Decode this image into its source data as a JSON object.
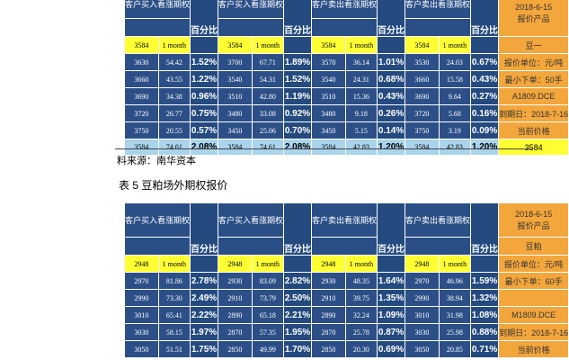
{
  "headers": {
    "buy_call": "客户买入看涨期权",
    "sell_call": "客户卖出看涨期权",
    "pct": "百分比",
    "month": "1 month"
  },
  "table1": {
    "side_header": [
      "2018-6-15",
      "报价产品"
    ],
    "side_product": "豆一",
    "side_unit": "报价单位：元/吨",
    "side_min": "最小下单：50手",
    "side_code": "A1809.DCE",
    "side_expiry": "到期日：2018-7-16",
    "side_current": "当前价格",
    "side_price": "3584",
    "rows": [
      {
        "k1": "3584",
        "k2": "3584",
        "k3": "3584",
        "k4": "3584"
      },
      {
        "k1": "3630",
        "v1": "54.42",
        "p1": "1.52%",
        "k2": "3700",
        "v2": "67.71",
        "p2": "1.89%",
        "k3": "3570",
        "v3": "36.14",
        "p3": "1.01%",
        "k4": "3530",
        "v4": "24.03",
        "p4": "0.67%"
      },
      {
        "k1": "3660",
        "v1": "43.55",
        "p1": "1.22%",
        "k2": "3540",
        "v2": "54.31",
        "p2": "1.52%",
        "k3": "3540",
        "v3": "24.31",
        "p3": "0.68%",
        "k4": "3660",
        "v4": "15.58",
        "p4": "0.43%"
      },
      {
        "k1": "3690",
        "v1": "34.38",
        "p1": "0.96%",
        "k2": "3510",
        "v2": "42.80",
        "p2": "1.19%",
        "k3": "3510",
        "v3": "15.36",
        "p3": "0.43%",
        "k4": "3690",
        "v4": "9.64",
        "p4": "0.27%"
      },
      {
        "k1": "3720",
        "v1": "26.77",
        "p1": "0.75%",
        "k2": "3480",
        "v2": "33.08",
        "p2": "0.92%",
        "k3": "3480",
        "v3": "9.18",
        "p3": "0.26%",
        "k4": "3720",
        "v4": "5.68",
        "p4": "0.16%"
      },
      {
        "k1": "3750",
        "v1": "20.55",
        "p1": "0.57%",
        "k2": "3450",
        "v2": "25.06",
        "p2": "0.70%",
        "k3": "3450",
        "v3": "5.15",
        "p3": "0.14%",
        "k4": "3750",
        "v4": "3.19",
        "p4": "0.09%"
      },
      {
        "k1": "3584",
        "v1": "74.61",
        "p1": "2.08%",
        "k2": "3584",
        "v2": "74.61",
        "p2": "2.08%",
        "k3": "3584",
        "v3": "42.83",
        "p3": "1.20%",
        "k4": "3584",
        "v4": "42.83",
        "p4": "1.20%"
      }
    ]
  },
  "caption_source": "料来源：南华资本",
  "caption_table5": "表 5  豆粕场外期权报价",
  "table2": {
    "side_header": [
      "2018-6-15",
      "报价产品"
    ],
    "side_product": "豆粕",
    "side_unit": "报价单位：元/吨",
    "side_min": "最小下单：60手",
    "side_code": "M1809.DCE",
    "side_expiry": "到期日：2018-7-16",
    "side_current": "当前价格",
    "rows": [
      {
        "k1": "2948",
        "k2": "2948",
        "k3": "2948",
        "k4": "2948"
      },
      {
        "k1": "2970",
        "v1": "81.86",
        "p1": "2.78%",
        "k2": "2930",
        "v2": "83.09",
        "p2": "2.82%",
        "k3": "2930",
        "v3": "48.35",
        "p3": "1.64%",
        "k4": "2970",
        "v4": "46.96",
        "p4": "1.59%"
      },
      {
        "k1": "2990",
        "v1": "73.30",
        "p1": "2.49%",
        "k2": "2910",
        "v2": "73.79",
        "p2": "2.50%",
        "k3": "2910",
        "v3": "39.75",
        "p3": "1.35%",
        "k4": "2990",
        "v4": "38.94",
        "p4": "1.32%"
      },
      {
        "k1": "3010",
        "v1": "65.41",
        "p1": "2.22%",
        "k2": "2890",
        "v2": "65.18",
        "p2": "2.21%",
        "k3": "2890",
        "v3": "32.24",
        "p3": "1.09%",
        "k4": "3010",
        "v4": "31.98",
        "p4": "1.08%"
      },
      {
        "k1": "3030",
        "v1": "58.15",
        "p1": "1.97%",
        "k2": "2870",
        "v2": "57.35",
        "p2": "1.95%",
        "k3": "2870",
        "v3": "25.78",
        "p3": "0.87%",
        "k4": "3030",
        "v4": "25.98",
        "p4": "0.88%"
      },
      {
        "k1": "3050",
        "v1": "51.51",
        "p1": "1.75%",
        "k2": "2850",
        "v2": "49.99",
        "p2": "1.70%",
        "k3": "2850",
        "v3": "20.30",
        "p3": "0.69%",
        "k4": "3050",
        "v4": "20.85",
        "p4": "0.71%"
      }
    ]
  }
}
